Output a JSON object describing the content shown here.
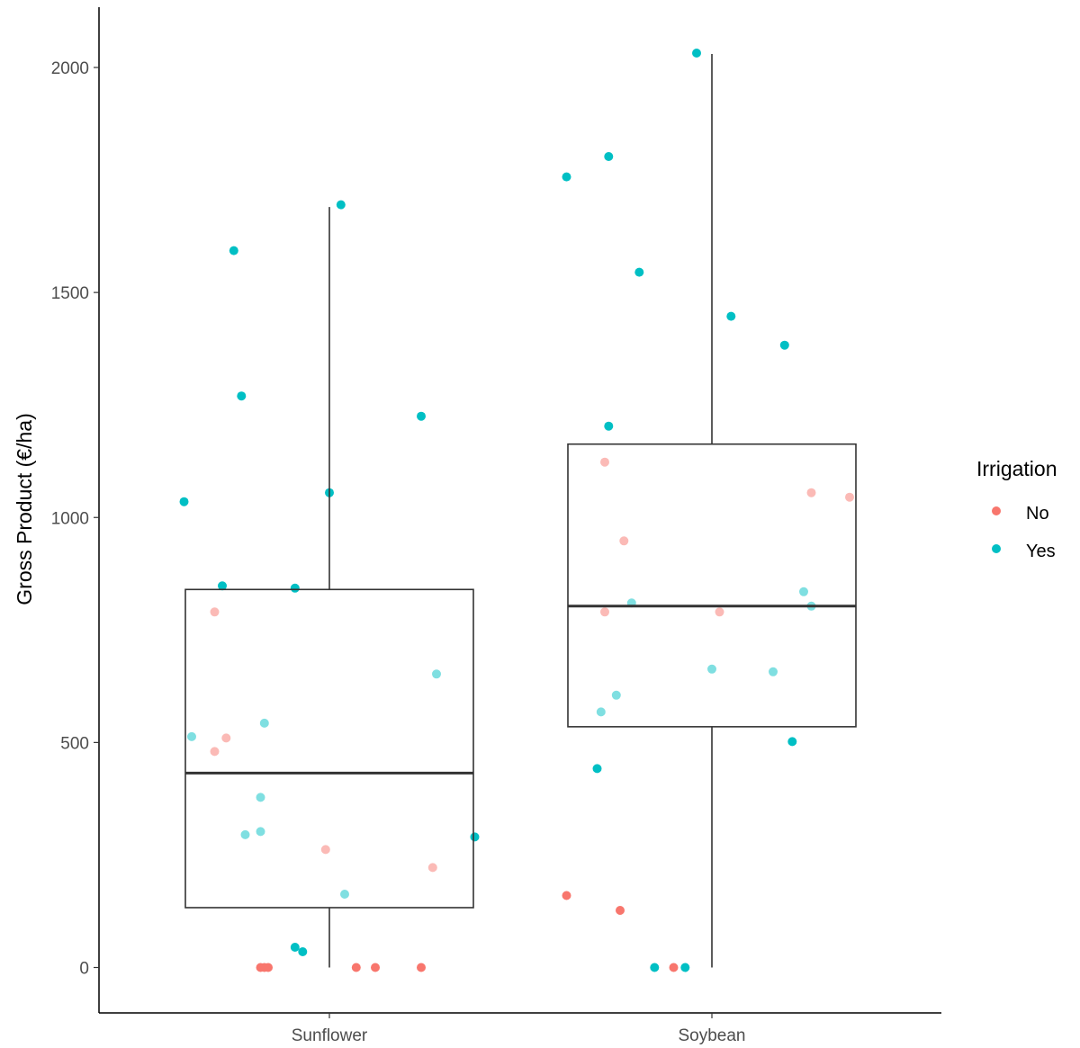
{
  "chart_data": {
    "type": "boxplot",
    "title": "",
    "xlabel": "",
    "ylabel": "Gross Product (€/ha)",
    "ylim": [
      -100,
      2130
    ],
    "yticks": [
      0,
      500,
      1000,
      1500,
      2000
    ],
    "grid": false,
    "legend": {
      "title": "Irrigation",
      "placement": "right",
      "entries": [
        {
          "label": "No",
          "color": "#F8766D"
        },
        {
          "label": "Yes",
          "color": "#00BFC4"
        }
      ]
    },
    "categories": [
      "Sunflower",
      "Soybean"
    ],
    "boxes": [
      {
        "category": "Sunflower",
        "lower_whisker": 0,
        "q1": 133,
        "median": 432,
        "q3": 840,
        "upper_whisker": 1690
      },
      {
        "category": "Soybean",
        "lower_whisker": 0,
        "q1": 535,
        "median": 803,
        "q3": 1163,
        "upper_whisker": 2030
      }
    ],
    "series": [
      {
        "name": "No",
        "color": "#F8766D",
        "points": [
          {
            "category": "Sunflower",
            "y": 790,
            "jitter": -0.3
          },
          {
            "category": "Sunflower",
            "y": 510,
            "jitter": -0.27
          },
          {
            "category": "Sunflower",
            "y": 480,
            "jitter": -0.3
          },
          {
            "category": "Sunflower",
            "y": 262,
            "jitter": -0.01
          },
          {
            "category": "Sunflower",
            "y": 222,
            "jitter": 0.27
          },
          {
            "category": "Sunflower",
            "y": 0,
            "jitter": -0.18
          },
          {
            "category": "Sunflower",
            "y": 0,
            "jitter": -0.17
          },
          {
            "category": "Sunflower",
            "y": 0,
            "jitter": -0.16
          },
          {
            "category": "Sunflower",
            "y": 0,
            "jitter": 0.07
          },
          {
            "category": "Sunflower",
            "y": 0,
            "jitter": 0.12
          },
          {
            "category": "Sunflower",
            "y": 0,
            "jitter": 0.24
          },
          {
            "category": "Soybean",
            "y": 1123,
            "jitter": -0.28
          },
          {
            "category": "Soybean",
            "y": 948,
            "jitter": -0.23
          },
          {
            "category": "Soybean",
            "y": 790,
            "jitter": -0.28
          },
          {
            "category": "Soybean",
            "y": 790,
            "jitter": 0.02
          },
          {
            "category": "Soybean",
            "y": 1055,
            "jitter": 0.26
          },
          {
            "category": "Soybean",
            "y": 1045,
            "jitter": 0.36
          },
          {
            "category": "Soybean",
            "y": 160,
            "jitter": -0.38
          },
          {
            "category": "Soybean",
            "y": 127,
            "jitter": -0.24
          },
          {
            "category": "Soybean",
            "y": 0,
            "jitter": -0.1
          }
        ]
      },
      {
        "name": "Yes",
        "color": "#00BFC4",
        "points": [
          {
            "category": "Sunflower",
            "y": 1695,
            "jitter": 0.03
          },
          {
            "category": "Sunflower",
            "y": 1593,
            "jitter": -0.25
          },
          {
            "category": "Sunflower",
            "y": 1270,
            "jitter": -0.23
          },
          {
            "category": "Sunflower",
            "y": 1225,
            "jitter": 0.24
          },
          {
            "category": "Sunflower",
            "y": 1055,
            "jitter": 0.0
          },
          {
            "category": "Sunflower",
            "y": 1035,
            "jitter": -0.38
          },
          {
            "category": "Sunflower",
            "y": 848,
            "jitter": -0.28
          },
          {
            "category": "Sunflower",
            "y": 843,
            "jitter": -0.09
          },
          {
            "category": "Sunflower",
            "y": 652,
            "jitter": 0.28
          },
          {
            "category": "Sunflower",
            "y": 543,
            "jitter": -0.17
          },
          {
            "category": "Sunflower",
            "y": 513,
            "jitter": -0.36
          },
          {
            "category": "Sunflower",
            "y": 378,
            "jitter": -0.18
          },
          {
            "category": "Sunflower",
            "y": 302,
            "jitter": -0.18
          },
          {
            "category": "Sunflower",
            "y": 295,
            "jitter": -0.22
          },
          {
            "category": "Sunflower",
            "y": 290,
            "jitter": 0.38
          },
          {
            "category": "Sunflower",
            "y": 163,
            "jitter": 0.04
          },
          {
            "category": "Sunflower",
            "y": 45,
            "jitter": -0.09
          },
          {
            "category": "Sunflower",
            "y": 35,
            "jitter": -0.07
          },
          {
            "category": "Soybean",
            "y": 2032,
            "jitter": -0.04
          },
          {
            "category": "Soybean",
            "y": 1802,
            "jitter": -0.27
          },
          {
            "category": "Soybean",
            "y": 1757,
            "jitter": -0.38
          },
          {
            "category": "Soybean",
            "y": 1545,
            "jitter": -0.19
          },
          {
            "category": "Soybean",
            "y": 1447,
            "jitter": 0.05
          },
          {
            "category": "Soybean",
            "y": 1383,
            "jitter": 0.19
          },
          {
            "category": "Soybean",
            "y": 1203,
            "jitter": -0.27
          },
          {
            "category": "Soybean",
            "y": 835,
            "jitter": 0.24
          },
          {
            "category": "Soybean",
            "y": 810,
            "jitter": -0.21
          },
          {
            "category": "Soybean",
            "y": 803,
            "jitter": 0.26
          },
          {
            "category": "Soybean",
            "y": 663,
            "jitter": 0.0
          },
          {
            "category": "Soybean",
            "y": 657,
            "jitter": 0.16
          },
          {
            "category": "Soybean",
            "y": 605,
            "jitter": -0.25
          },
          {
            "category": "Soybean",
            "y": 568,
            "jitter": -0.29
          },
          {
            "category": "Soybean",
            "y": 502,
            "jitter": 0.21
          },
          {
            "category": "Soybean",
            "y": 442,
            "jitter": -0.3
          },
          {
            "category": "Soybean",
            "y": 0,
            "jitter": -0.15
          },
          {
            "category": "Soybean",
            "y": 0,
            "jitter": -0.07
          }
        ]
      }
    ]
  }
}
